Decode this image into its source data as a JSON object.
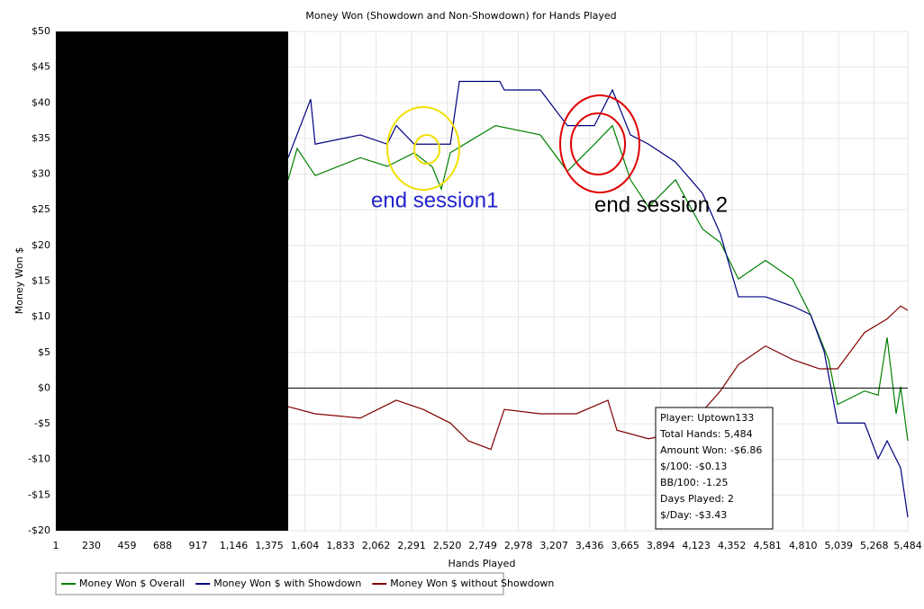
{
  "chart_data": {
    "type": "line",
    "title": "Money Won (Showdown and Non-Showdown) for Hands Played",
    "xlabel": "Hands Played",
    "ylabel": "Money Won $",
    "xlim": [
      1,
      5484
    ],
    "ylim": [
      -20,
      50
    ],
    "xticks": [
      1,
      230,
      459,
      688,
      917,
      {
        "value": 1146,
        "label": "1,146"
      },
      {
        "value": 1375,
        "label": "1,375"
      },
      {
        "value": 1604,
        "label": "1,604"
      },
      {
        "value": 1833,
        "label": "1,833"
      },
      {
        "value": 2062,
        "label": "2,062"
      },
      {
        "value": 2291,
        "label": "2,291"
      },
      {
        "value": 2520,
        "label": "2,520"
      },
      {
        "value": 2749,
        "label": "2,749"
      },
      {
        "value": 2978,
        "label": "2,978"
      },
      {
        "value": 3207,
        "label": "3,207"
      },
      {
        "value": 3436,
        "label": "3,436"
      },
      {
        "value": 3665,
        "label": "3,665"
      },
      {
        "value": 3894,
        "label": "3,894"
      },
      {
        "value": 4123,
        "label": "4,123"
      },
      {
        "value": 4352,
        "label": "4,352"
      },
      {
        "value": 4581,
        "label": "4,581"
      },
      {
        "value": 4810,
        "label": "4,810"
      },
      {
        "value": 5039,
        "label": "5,039"
      },
      {
        "value": 5268,
        "label": "5,268"
      },
      {
        "value": 5484,
        "label": "5,484"
      }
    ],
    "yticks": [
      {
        "value": -20,
        "label": "-$20"
      },
      {
        "value": -15,
        "label": "-$15"
      },
      {
        "value": -10,
        "label": "-$10"
      },
      {
        "value": -5,
        "label": "-$5"
      },
      {
        "value": 0,
        "label": "$0"
      },
      {
        "value": 5,
        "label": "$5"
      },
      {
        "value": 10,
        "label": "$10"
      },
      {
        "value": 15,
        "label": "$15"
      },
      {
        "value": 20,
        "label": "$20"
      },
      {
        "value": 25,
        "label": "$25"
      },
      {
        "value": 30,
        "label": "$30"
      },
      {
        "value": 35,
        "label": "$35"
      },
      {
        "value": 40,
        "label": "$40"
      },
      {
        "value": 45,
        "label": "$45"
      },
      {
        "value": 50,
        "label": "$50"
      }
    ],
    "grid": true,
    "series": [
      {
        "name": "Money Won $ Overall",
        "color": "#008000",
        "x": [
          1496,
          1554,
          1670,
          1960,
          2134,
          2308,
          2424,
          2482,
          2540,
          2830,
          3119,
          3293,
          3467,
          3583,
          3699,
          3815,
          3989,
          4163,
          4278,
          4394,
          4568,
          4742,
          4858,
          4974,
          5032,
          5206,
          5293,
          5351,
          5409,
          5438,
          5484
        ],
        "values": [
          29.2,
          33.6,
          29.8,
          32.3,
          31.1,
          33,
          31,
          27.9,
          33,
          36.8,
          35.5,
          30.4,
          34.2,
          36.8,
          29.2,
          25.4,
          29.2,
          22.3,
          20.4,
          15.3,
          17.9,
          15.3,
          10.3,
          4,
          -2.3,
          -0.4,
          -1,
          7.1,
          -3.6,
          0.2,
          -7.4
        ]
      },
      {
        "name": "Money Won $ with Showdown",
        "color": "#000080",
        "x": [
          1496,
          1641,
          1670,
          1960,
          2134,
          2192,
          2308,
          2540,
          2598,
          2858,
          2887,
          3119,
          3293,
          3467,
          3583,
          3699,
          3815,
          3989,
          4163,
          4278,
          4394,
          4568,
          4742,
          4858,
          4945,
          5032,
          5206,
          5293,
          5351,
          5438,
          5484
        ],
        "values": [
          32.3,
          40.5,
          34.2,
          35.5,
          34.2,
          36.8,
          34.2,
          34.2,
          43,
          43,
          41.8,
          41.8,
          36.8,
          36.8,
          41.8,
          35.5,
          34.2,
          31.7,
          27.3,
          21.6,
          12.8,
          12.8,
          11.5,
          10.3,
          5.2,
          -4.9,
          -4.9,
          -9.9,
          -7.4,
          -11.2,
          -18.1
        ]
      },
      {
        "name": "Money Won $ without Showdown",
        "color": "#800000",
        "x": [
          1496,
          1670,
          1960,
          2192,
          2366,
          2540,
          2656,
          2801,
          2887,
          3119,
          3351,
          3554,
          3612,
          3815,
          4047,
          4278,
          4394,
          4568,
          4742,
          4916,
          5032,
          5206,
          5351,
          5438,
          5484
        ],
        "values": [
          -2.6,
          -3.6,
          -4.2,
          -1.7,
          -3,
          -4.9,
          -7.4,
          -8.6,
          -3,
          -3.6,
          -3.6,
          -1.7,
          -5.9,
          -7.1,
          -6.1,
          -0.4,
          3.3,
          5.9,
          4,
          2.7,
          2.7,
          7.8,
          9.7,
          11.5,
          10.9
        ]
      }
    ],
    "annotations": [
      "end session1",
      "end session 2"
    ],
    "info_box": [
      "Player: Uptown133",
      "Total Hands: 5,484",
      "Amount Won: -$6.86",
      "$/100: -$0.13",
      "BB/100: -1.25",
      "Days Played: 2",
      "$/Day: -$3.43"
    ]
  }
}
